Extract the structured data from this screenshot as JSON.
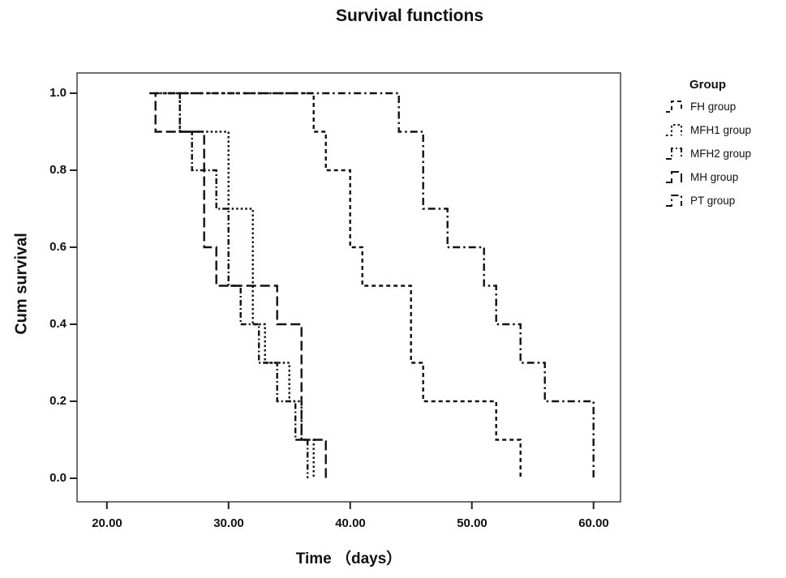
{
  "title": "Survival functions",
  "axes": {
    "x_label": "Time （days）",
    "y_label": "Cum survival",
    "x_ticks": [
      "20.00",
      "30.00",
      "40.00",
      "50.00",
      "60.00"
    ],
    "y_ticks": [
      "1.0",
      "0.8",
      "0.6",
      "0.4",
      "0.2",
      "0.0"
    ]
  },
  "legend": {
    "title": "Group",
    "items": [
      {
        "label": "FH group"
      },
      {
        "label": "MFH1 group"
      },
      {
        "label": "MFH2 group"
      },
      {
        "label": "MH group"
      },
      {
        "label": "PT group"
      }
    ]
  },
  "colors": {
    "curve": "#111111",
    "frame": "#4d4d4d",
    "tick": "#222222",
    "text": "#111111",
    "background": "#ffffff"
  },
  "chart_data": {
    "type": "line",
    "subtype": "kaplan-meier-step",
    "title": "Survival functions",
    "xlabel": "Time (days)",
    "ylabel": "Cum survival",
    "xlim": [
      17.55,
      62.22
    ],
    "ylim": [
      0.0,
      1.05
    ],
    "x_tick_values": [
      20,
      30,
      40,
      50,
      60
    ],
    "y_tick_values": [
      1.0,
      0.8,
      0.6,
      0.4,
      0.2,
      0.0
    ],
    "grid": false,
    "legend_position": "right-outside",
    "series": [
      {
        "name": "FH group",
        "dash": "5 4",
        "points": [
          [
            24,
            1.0
          ],
          [
            37,
            1.0
          ],
          [
            37,
            0.9
          ],
          [
            38,
            0.9
          ],
          [
            38,
            0.8
          ],
          [
            40,
            0.8
          ],
          [
            40,
            0.6
          ],
          [
            41,
            0.6
          ],
          [
            41,
            0.5
          ],
          [
            45,
            0.5
          ],
          [
            45,
            0.3
          ],
          [
            46,
            0.3
          ],
          [
            46,
            0.2
          ],
          [
            52,
            0.2
          ],
          [
            52,
            0.1
          ],
          [
            54,
            0.1
          ],
          [
            54,
            0.0
          ]
        ]
      },
      {
        "name": "MFH1 group",
        "dash": "2.5 3",
        "points": [
          [
            24,
            1.0
          ],
          [
            26,
            1.0
          ],
          [
            26,
            0.9
          ],
          [
            30,
            0.9
          ],
          [
            30,
            0.7
          ],
          [
            32,
            0.7
          ],
          [
            32,
            0.4
          ],
          [
            33,
            0.4
          ],
          [
            33,
            0.3
          ],
          [
            35,
            0.3
          ],
          [
            35,
            0.2
          ],
          [
            36,
            0.2
          ],
          [
            36,
            0.1
          ],
          [
            37,
            0.1
          ],
          [
            37,
            0.0
          ]
        ]
      },
      {
        "name": "MFH2 group",
        "dash": "7 3 2 3",
        "points": [
          [
            25,
            1.0
          ],
          [
            26,
            1.0
          ],
          [
            26,
            0.9
          ],
          [
            27,
            0.9
          ],
          [
            27,
            0.8
          ],
          [
            29,
            0.8
          ],
          [
            29,
            0.7
          ],
          [
            30,
            0.7
          ],
          [
            30,
            0.5
          ],
          [
            31,
            0.5
          ],
          [
            31,
            0.4
          ],
          [
            32.5,
            0.4
          ],
          [
            32.5,
            0.3
          ],
          [
            34,
            0.3
          ],
          [
            34,
            0.2
          ],
          [
            35.5,
            0.2
          ],
          [
            35.5,
            0.1
          ],
          [
            36.5,
            0.1
          ],
          [
            36.5,
            0.0
          ]
        ]
      },
      {
        "name": "MH group",
        "dash": "12 5",
        "points": [
          [
            23.5,
            1.0
          ],
          [
            24,
            1.0
          ],
          [
            24,
            0.9
          ],
          [
            28,
            0.9
          ],
          [
            28,
            0.6
          ],
          [
            29,
            0.6
          ],
          [
            29,
            0.5
          ],
          [
            34,
            0.5
          ],
          [
            34,
            0.4
          ],
          [
            36,
            0.4
          ],
          [
            36,
            0.1
          ],
          [
            38,
            0.1
          ],
          [
            38,
            0.0
          ]
        ]
      },
      {
        "name": "PT group",
        "dash": "9 4 2.5 4",
        "points": [
          [
            26,
            1.0
          ],
          [
            44,
            1.0
          ],
          [
            44,
            0.9
          ],
          [
            46,
            0.9
          ],
          [
            46,
            0.7
          ],
          [
            48,
            0.7
          ],
          [
            48,
            0.6
          ],
          [
            51,
            0.6
          ],
          [
            51,
            0.5
          ],
          [
            52,
            0.5
          ],
          [
            52,
            0.4
          ],
          [
            54,
            0.4
          ],
          [
            54,
            0.3
          ],
          [
            56,
            0.3
          ],
          [
            56,
            0.2
          ],
          [
            60,
            0.2
          ],
          [
            60,
            0.0
          ]
        ]
      }
    ]
  }
}
